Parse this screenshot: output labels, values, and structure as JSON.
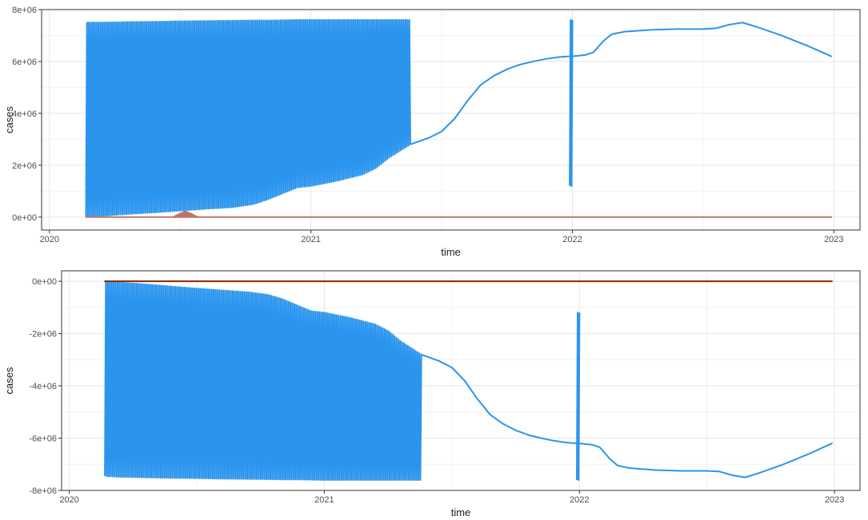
{
  "colors": {
    "series_blue": "#2b95ee",
    "series_brown": "#b87868",
    "series_darkred": "#8b2500",
    "grid_major": "#e6e6e6",
    "grid_minor": "#f2f2f2",
    "panel_border": "#333333",
    "tick_text": "#4d4d4d"
  },
  "chart_data": [
    {
      "type": "line",
      "title": "",
      "xlabel": "time",
      "ylabel": "cases",
      "grid": true,
      "xlim": [
        2019.97,
        2023.1
      ],
      "ylim": [
        -500000,
        8000000
      ],
      "x_ticks": [
        2020,
        2021,
        2022,
        2023
      ],
      "x_tick_labels": [
        "2020",
        "2021",
        "2022",
        "2023"
      ],
      "y_ticks": [
        0,
        2000000,
        4000000,
        6000000,
        8000000
      ],
      "y_tick_labels": [
        "0e+00",
        "2e+06",
        "4e+06",
        "6e+06",
        "8e+06"
      ],
      "series": [
        {
          "color": "#2b95ee",
          "style": "oscillating",
          "x": [
            2020.14,
            2020.2,
            2020.3,
            2020.4,
            2020.5,
            2020.6,
            2020.7,
            2020.78,
            2020.84,
            2020.9,
            2020.95,
            2021.0,
            2021.1,
            2021.2,
            2021.25,
            2021.3,
            2021.38
          ],
          "low": [
            20000,
            50000,
            120000,
            180000,
            250000,
            320000,
            380000,
            500000,
            700000,
            950000,
            1150000,
            1200000,
            1400000,
            1650000,
            1900000,
            2300000,
            2800000
          ],
          "high": [
            7500000,
            7500000,
            7520000,
            7530000,
            7550000,
            7560000,
            7570000,
            7580000,
            7580000,
            7590000,
            7600000,
            7600000,
            7600000,
            7600000,
            7600000,
            7600000,
            7600000
          ]
        },
        {
          "color": "#2b95ee",
          "style": "line",
          "x": [
            2021.38,
            2021.45,
            2021.5,
            2021.55,
            2021.6,
            2021.65,
            2021.7,
            2021.75,
            2021.8,
            2021.85,
            2021.9,
            2021.95,
            2021.99
          ],
          "y": [
            2800000,
            3050000,
            3300000,
            3800000,
            4500000,
            5100000,
            5450000,
            5700000,
            5880000,
            6000000,
            6100000,
            6170000,
            6200000
          ]
        },
        {
          "color": "#2b95ee",
          "style": "oscillating",
          "x": [
            2021.99,
            2022.0
          ],
          "low": [
            1200000,
            1200000
          ],
          "high": [
            7600000,
            7600000
          ]
        },
        {
          "color": "#2b95ee",
          "style": "line",
          "x": [
            2022.0,
            2022.05,
            2022.08,
            2022.12,
            2022.15,
            2022.2,
            2022.3,
            2022.4,
            2022.5,
            2022.55,
            2022.6,
            2022.65,
            2022.7,
            2022.8,
            2022.9,
            2022.99
          ],
          "y": [
            6200000,
            6250000,
            6350000,
            6800000,
            7050000,
            7150000,
            7220000,
            7250000,
            7250000,
            7280000,
            7420000,
            7500000,
            7350000,
            7000000,
            6600000,
            6200000
          ]
        },
        {
          "color": "#b87868",
          "style": "line",
          "x": [
            2020.14,
            2022.99
          ],
          "y": [
            0,
            0
          ]
        },
        {
          "color": "#b87868",
          "style": "spike",
          "x": [
            2020.47,
            2020.5,
            2020.52,
            2020.54,
            2020.57
          ],
          "y": [
            0,
            150000,
            230000,
            150000,
            0
          ]
        }
      ]
    },
    {
      "type": "line",
      "title": "",
      "xlabel": "time",
      "ylabel": "cases",
      "grid": true,
      "xlim": [
        2019.97,
        2023.1
      ],
      "ylim": [
        -8000000,
        400000
      ],
      "x_ticks": [
        2020,
        2021,
        2022,
        2023
      ],
      "x_tick_labels": [
        "2020",
        "2021",
        "2022",
        "2023"
      ],
      "y_ticks": [
        0,
        -2000000,
        -4000000,
        -6000000,
        -8000000
      ],
      "y_tick_labels": [
        "0e+00",
        "-2e+06",
        "-4e+06",
        "-6e+06",
        "-8e+06"
      ],
      "series": [
        {
          "color": "#2b95ee",
          "style": "oscillating",
          "x": [
            2020.14,
            2020.2,
            2020.3,
            2020.4,
            2020.5,
            2020.6,
            2020.7,
            2020.78,
            2020.84,
            2020.9,
            2020.95,
            2021.0,
            2021.1,
            2021.2,
            2021.25,
            2021.3,
            2021.38
          ],
          "low": [
            -7450000,
            -7480000,
            -7500000,
            -7520000,
            -7530000,
            -7550000,
            -7560000,
            -7570000,
            -7580000,
            -7580000,
            -7590000,
            -7600000,
            -7600000,
            -7600000,
            -7600000,
            -7600000,
            -7600000
          ],
          "high": [
            0,
            -50000,
            -120000,
            -200000,
            -280000,
            -350000,
            -420000,
            -520000,
            -700000,
            -950000,
            -1150000,
            -1200000,
            -1400000,
            -1650000,
            -1900000,
            -2300000,
            -2800000
          ]
        },
        {
          "color": "#2b95ee",
          "style": "line",
          "x": [
            2021.38,
            2021.45,
            2021.5,
            2021.55,
            2021.6,
            2021.65,
            2021.7,
            2021.75,
            2021.8,
            2021.85,
            2021.9,
            2021.95,
            2021.99
          ],
          "y": [
            -2800000,
            -3050000,
            -3300000,
            -3800000,
            -4500000,
            -5100000,
            -5450000,
            -5700000,
            -5880000,
            -6000000,
            -6100000,
            -6170000,
            -6200000
          ]
        },
        {
          "color": "#2b95ee",
          "style": "oscillating",
          "x": [
            2021.99,
            2022.0
          ],
          "low": [
            -7600000,
            -7600000
          ],
          "high": [
            -1200000,
            -1200000
          ]
        },
        {
          "color": "#2b95ee",
          "style": "line",
          "x": [
            2022.0,
            2022.05,
            2022.08,
            2022.12,
            2022.15,
            2022.2,
            2022.3,
            2022.4,
            2022.5,
            2022.55,
            2022.6,
            2022.65,
            2022.7,
            2022.8,
            2022.9,
            2022.99
          ],
          "y": [
            -6200000,
            -6250000,
            -6350000,
            -6800000,
            -7050000,
            -7150000,
            -7220000,
            -7250000,
            -7250000,
            -7280000,
            -7420000,
            -7500000,
            -7350000,
            -7000000,
            -6600000,
            -6200000
          ]
        },
        {
          "color": "#8b2500",
          "style": "line",
          "x": [
            2020.14,
            2022.99
          ],
          "y": [
            0,
            0
          ]
        }
      ]
    }
  ]
}
